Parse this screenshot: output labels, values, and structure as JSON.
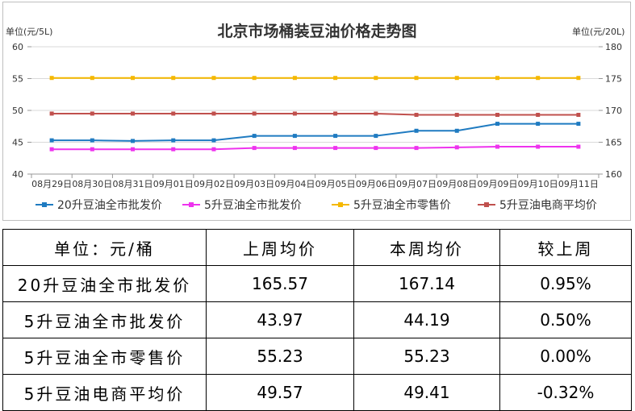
{
  "chart_data": {
    "type": "line",
    "title": "北京市场桶装豆油价格走势图",
    "ylabel_left": "单位(元/5L)",
    "ylabel_right": "单位(元/20L)",
    "ylim_left": [
      40,
      60
    ],
    "yticks_left": [
      "40",
      "45",
      "50",
      "55",
      "60"
    ],
    "ylim_right": [
      160,
      180
    ],
    "yticks_right": [
      "160",
      "165",
      "170",
      "175",
      "180"
    ],
    "categories": [
      "08月29日",
      "08月30日",
      "08月31日",
      "09月01日",
      "09月02日",
      "09月03日",
      "09月04日",
      "09月05日",
      "09月06日",
      "09月07日",
      "09月08日",
      "09月09日",
      "09月10日",
      "09月11日"
    ],
    "legend_position": "bottom",
    "grid": "horizontal",
    "series": [
      {
        "name": "20升豆油全市批发价",
        "axis": "right",
        "color": "#1f7bc1",
        "marker": "square",
        "values": [
          165.3,
          165.3,
          165.2,
          165.3,
          165.3,
          166.0,
          166.0,
          166.0,
          166.0,
          166.8,
          166.8,
          167.9,
          167.9,
          167.9
        ]
      },
      {
        "name": "5升豆油全市批发价",
        "axis": "left",
        "color": "#ee33ee",
        "marker": "square",
        "values": [
          43.9,
          43.9,
          43.9,
          43.9,
          43.9,
          44.1,
          44.1,
          44.1,
          44.1,
          44.1,
          44.2,
          44.3,
          44.3,
          44.3
        ]
      },
      {
        "name": "5升豆油全市零售价",
        "axis": "left",
        "color": "#f5b800",
        "marker": "square",
        "values": [
          55.1,
          55.1,
          55.1,
          55.1,
          55.1,
          55.1,
          55.1,
          55.1,
          55.1,
          55.1,
          55.1,
          55.1,
          55.1,
          55.1
        ]
      },
      {
        "name": "5升豆油电商平均价",
        "axis": "left",
        "color": "#c0504d",
        "marker": "square",
        "values": [
          49.5,
          49.5,
          49.5,
          49.5,
          49.5,
          49.5,
          49.5,
          49.5,
          49.5,
          49.3,
          49.3,
          49.3,
          49.3,
          49.3
        ]
      }
    ]
  },
  "table": {
    "headers": [
      "单位：元/桶",
      "上周均价",
      "本周均价",
      "较上周"
    ],
    "rows": [
      [
        "20升豆油全市批发价",
        "165.57",
        "167.14",
        "0.95%"
      ],
      [
        "5升豆油全市批发价",
        "43.97",
        "44.19",
        "0.50%"
      ],
      [
        "5升豆油全市零售价",
        "55.23",
        "55.23",
        "0.00%"
      ],
      [
        "5升豆油电商平均价",
        "49.57",
        "49.41",
        "-0.32%"
      ]
    ]
  }
}
